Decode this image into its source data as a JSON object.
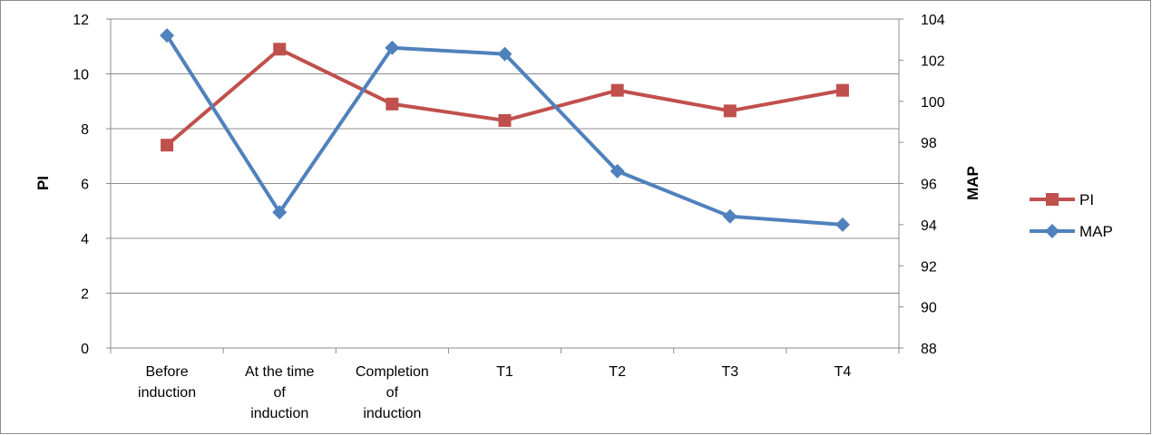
{
  "chart_data": {
    "type": "line",
    "categories": [
      [
        "Before",
        "induction"
      ],
      [
        "At the time",
        "of",
        "induction"
      ],
      [
        "Completion",
        "of",
        "induction"
      ],
      [
        "T1"
      ],
      [
        "T2"
      ],
      [
        "T3"
      ],
      [
        "T4"
      ]
    ],
    "y_left": {
      "label": "PI",
      "ylim": [
        0,
        12
      ],
      "ticks": [
        "0",
        "2",
        "4",
        "6",
        "8",
        "10",
        "12"
      ]
    },
    "y_right": {
      "label": "MAP",
      "ylim": [
        88,
        104
      ],
      "ticks": [
        "88",
        "90",
        "92",
        "94",
        "96",
        "98",
        "100",
        "102",
        "104"
      ]
    },
    "grid": true,
    "legend_position": "right",
    "series": [
      {
        "name": "PI",
        "axis": "left",
        "color": "#C0504D",
        "marker": "square",
        "values": [
          7.4,
          10.9,
          8.9,
          8.3,
          9.4,
          8.65,
          9.4
        ]
      },
      {
        "name": "MAP",
        "axis": "right",
        "color": "#4F81BD",
        "marker": "diamond",
        "values": [
          103.2,
          94.6,
          102.6,
          102.3,
          96.6,
          94.4,
          94.0
        ]
      }
    ]
  }
}
